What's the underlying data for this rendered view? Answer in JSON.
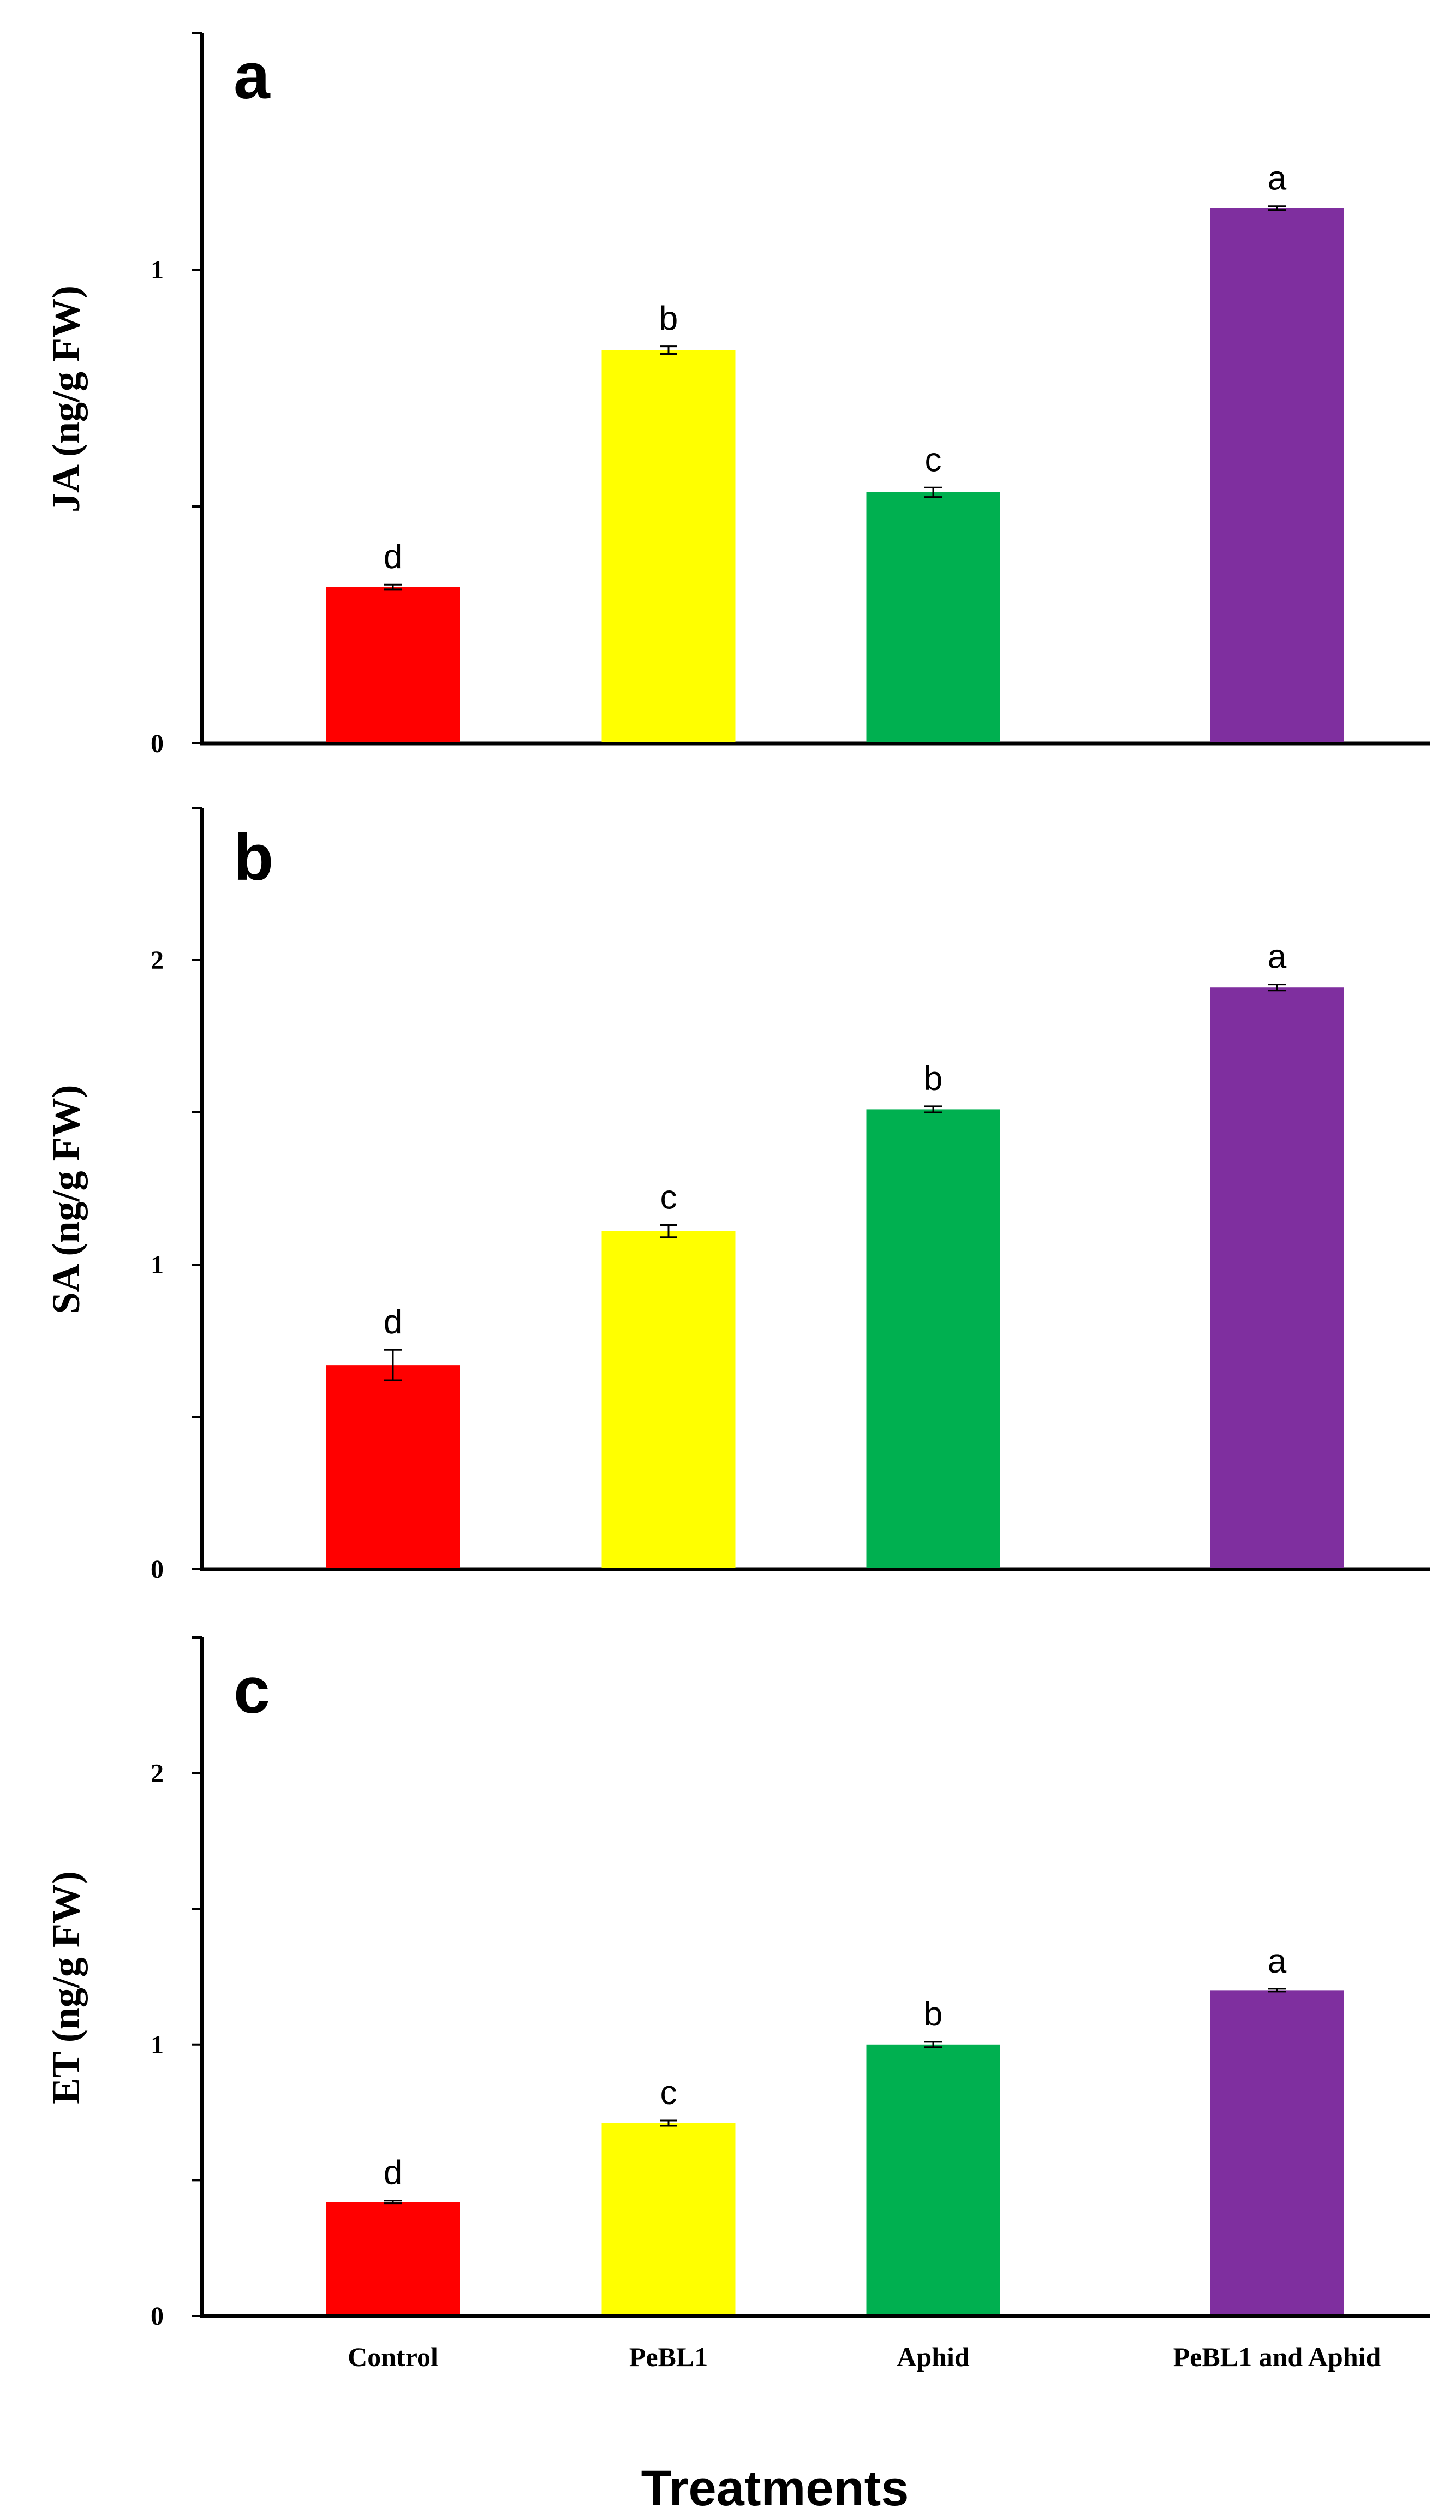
{
  "x_title": "Treatments",
  "categories": [
    "Control",
    "PeBL1",
    "Aphid",
    "PeBL1 and Aphid"
  ],
  "colors": [
    "#ff0000",
    "#ffff00",
    "#00b050",
    "#7f2f9f"
  ],
  "chart_data": [
    {
      "type": "bar",
      "panel": "a",
      "ylabel": "JA (ng/g FW)",
      "categories": [
        "Control",
        "PeBL1",
        "Aphid",
        "PeBL1 and Aphid"
      ],
      "values": [
        0.33,
        0.83,
        0.53,
        1.13
      ],
      "errors": [
        0.005,
        0.008,
        0.01,
        0.004
      ],
      "significance": [
        "d",
        "b",
        "c",
        "a"
      ],
      "ylim": [
        0,
        1.5
      ],
      "yticks": [
        0,
        0.5,
        1,
        1.5
      ],
      "ytick_labels": [
        "0",
        "",
        "1",
        ""
      ]
    },
    {
      "type": "bar",
      "panel": "b",
      "ylabel": "SA (ng/g FW)",
      "categories": [
        "Control",
        "PeBL1",
        "Aphid",
        "PeBL1 and Aphid"
      ],
      "values": [
        0.67,
        1.11,
        1.51,
        1.91
      ],
      "errors": [
        0.05,
        0.02,
        0.01,
        0.01
      ],
      "significance": [
        "d",
        "c",
        "b",
        "a"
      ],
      "ylim": [
        0,
        2.5
      ],
      "yticks": [
        0,
        0.5,
        1,
        1.5,
        2,
        2.5
      ],
      "ytick_labels": [
        "0",
        "",
        "1",
        "",
        "2",
        ""
      ]
    },
    {
      "type": "bar",
      "panel": "c",
      "ylabel": "ET (ng/g FW)",
      "categories": [
        "Control",
        "PeBL1",
        "Aphid",
        "PeBL1 and Aphid"
      ],
      "values": [
        0.42,
        0.71,
        1.0,
        1.2
      ],
      "errors": [
        0.005,
        0.01,
        0.01,
        0.005
      ],
      "significance": [
        "d",
        "c",
        "b",
        "a"
      ],
      "ylim": [
        0,
        2.5
      ],
      "yticks": [
        0,
        0.5,
        1,
        1.5,
        2,
        2.5
      ],
      "ytick_labels": [
        "0",
        "",
        "1",
        "",
        "2",
        ""
      ]
    }
  ]
}
